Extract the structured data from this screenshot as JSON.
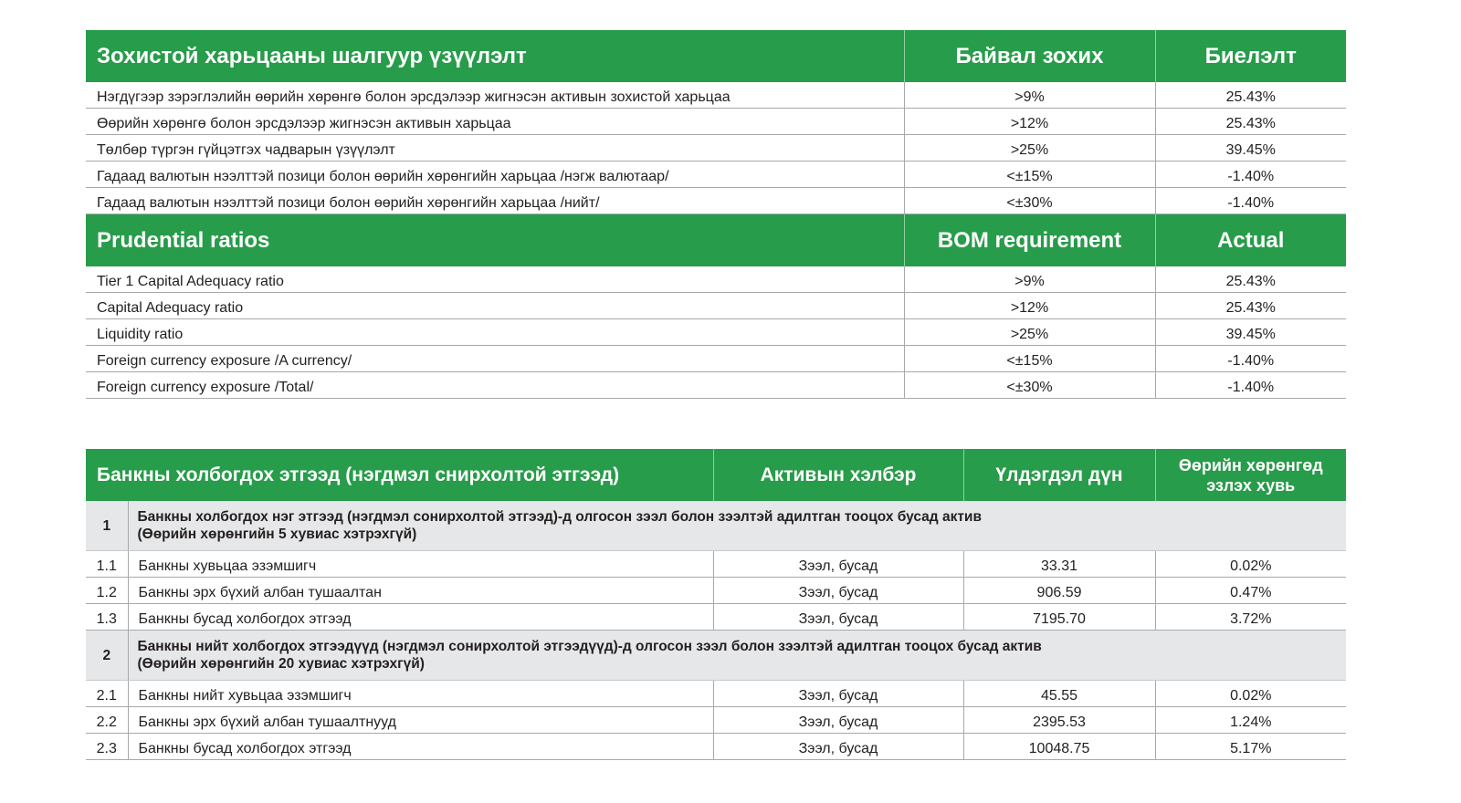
{
  "ratios_mn": {
    "headers": [
      "Зохистой харьцааны шалгуур үзүүлэлт",
      "Байвал зохих",
      "Биелэлт"
    ],
    "rows": [
      [
        "Нэгдүгээр зэрэглэлийн өөрийн хөрөнгө болон эрсдэлээр жигнэсэн активын зохистой харьцаа",
        ">9%",
        "25.43%"
      ],
      [
        "Өөрийн хөрөнгө болон эрсдэлээр жигнэсэн активын  харьцаа",
        ">12%",
        "25.43%"
      ],
      [
        "Төлбөр түргэн гүйцэтгэх чадварын үзүүлэлт",
        ">25%",
        "39.45%"
      ],
      [
        "Гадаад валютын нээлттэй позици болон өөрийн хөрөнгийн харьцаа /нэгж валютаар/",
        "<±15%",
        "-1.40%"
      ],
      [
        "Гадаад валютын нээлттэй позици болон өөрийн хөрөнгийн харьцаа /нийт/",
        "<±30%",
        "-1.40%"
      ]
    ]
  },
  "ratios_en": {
    "headers": [
      "Prudential ratios",
      "BOM requirement",
      "Actual"
    ],
    "rows": [
      [
        "Tier 1 Capital Adequacy ratio",
        ">9%",
        "25.43%"
      ],
      [
        "Capital Adequacy ratio",
        ">12%",
        "25.43%"
      ],
      [
        "Liquidity ratio",
        ">25%",
        "39.45%"
      ],
      [
        "Foreign currency exposure /A currency/",
        "<±15%",
        "-1.40%"
      ],
      [
        "Foreign currency exposure /Total/",
        "<±30%",
        "-1.40%"
      ]
    ]
  },
  "related": {
    "headers": [
      "Банкны холбогдох этгээд (нэгдмэл снирхолтой этгээд)",
      "Активын хэлбэр",
      "Үлдэгдэл дүн",
      "Өөрийн хөрөнгөд эзлэх хувь"
    ],
    "sections": [
      {
        "num": "1",
        "title": "Банкны холбогдох нэг этгээд (нэгдмэл сонирхолтой этгээд)-д олгосон зээл болон зээлтэй адилтган тооцох бусад актив",
        "subtitle": "(Өөрийн хөрөнгийн 5 хувиас хэтрэхгүй)",
        "rows": [
          [
            "1.1",
            "Банкны хувьцаа эзэмшигч",
            "Зээл, бусад",
            "33.31",
            "0.02%"
          ],
          [
            "1.2",
            "Банкны эрх бүхий албан тушаалтан",
            "Зээл, бусад",
            "906.59",
            "0.47%"
          ],
          [
            "1.3",
            "Банкны бусад холбогдох этгээд",
            "Зээл, бусад",
            "7195.70",
            "3.72%"
          ]
        ]
      },
      {
        "num": "2",
        "title": "Банкны нийт холбогдох этгээдүүд (нэгдмэл сонирхолтой этгээдүүд)-д олгосон зээл болон зээлтэй адилтган тооцох бусад актив",
        "subtitle": "(Өөрийн хөрөнгийн 20 хувиас хэтрэхгүй)",
        "rows": [
          [
            "2.1",
            "Банкны нийт хувьцаа эзэмшигч",
            "Зээл, бусад",
            "45.55",
            "0.02%"
          ],
          [
            "2.2",
            "Банкны эрх бүхий албан тушаалтнууд",
            "Зээл, бусад",
            "2395.53",
            "1.24%"
          ],
          [
            "2.3",
            "Банкны бусад холбогдох этгээд",
            "Зээл, бусад",
            "10048.75",
            "5.17%"
          ]
        ]
      }
    ]
  },
  "colors": {
    "header_green": "#279c4a",
    "section_gray": "#e6e7e8"
  }
}
